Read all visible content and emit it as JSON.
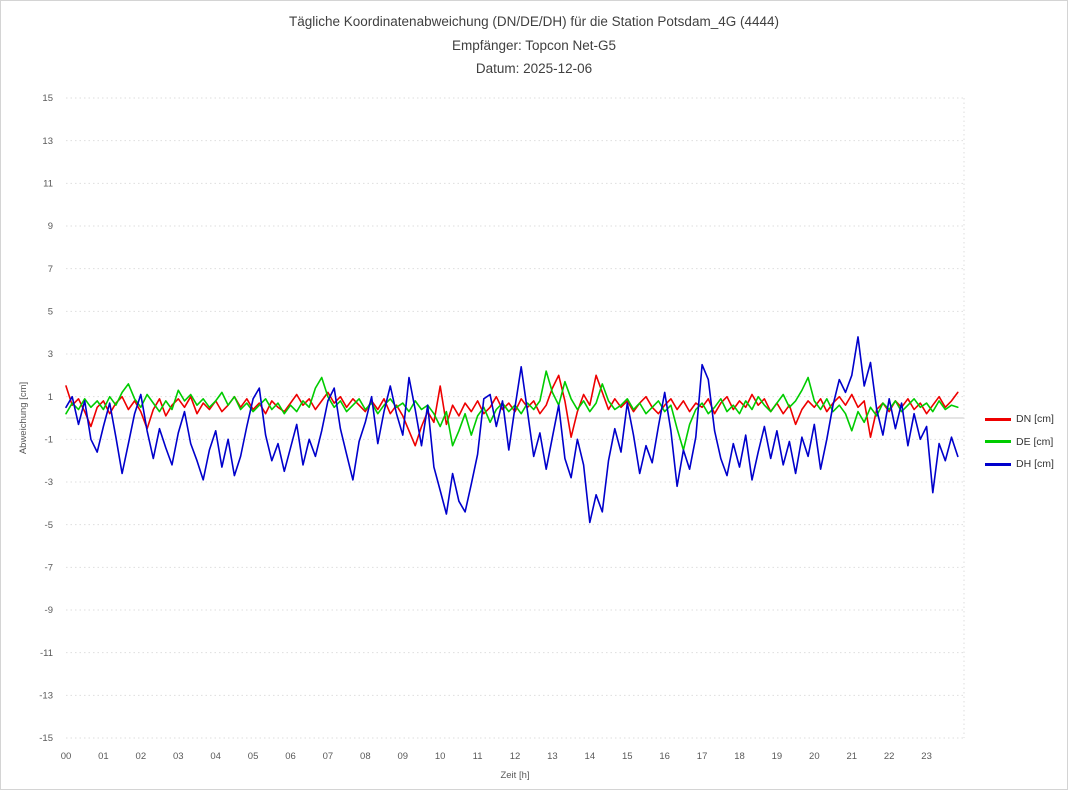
{
  "header": {
    "title": "Tägliche Koordinatenabweichung (DN/DE/DH) für die Station Potsdam_4G (4444)",
    "subtitle_receiver": "Empfänger: Topcon Net-G5",
    "subtitle_date": "Datum: 2025-12-06"
  },
  "chart_data": {
    "type": "line",
    "title": "Tägliche Koordinatenabweichung (DN/DE/DH) für die Station Potsdam_4G (4444)",
    "subtitle": [
      "Empfänger: Topcon Net-G5",
      "Datum: 2025-12-06"
    ],
    "xlabel": "Zeit [h]",
    "ylabel": "Abweichung [cm]",
    "xlim": [
      0,
      24
    ],
    "ylim": [
      -15,
      15
    ],
    "x_tick_labels": [
      "00",
      "01",
      "02",
      "03",
      "04",
      "05",
      "06",
      "07",
      "08",
      "09",
      "10",
      "11",
      "12",
      "13",
      "14",
      "15",
      "16",
      "17",
      "18",
      "19",
      "20",
      "21",
      "22",
      "23"
    ],
    "y_ticks": [
      15,
      13,
      11,
      9,
      7,
      5,
      3,
      1,
      -1,
      -3,
      -5,
      -7,
      -9,
      -11,
      -13,
      -15
    ],
    "x_start_hour": 0,
    "x_interval_minutes": 10,
    "grid": "horizontal-dotted",
    "zero_line": true,
    "legend_position": "right",
    "colors": {
      "grid": "#dedede",
      "zero_line": "#c8c8c8",
      "tick_text": "#595959",
      "border": "#d4d4d4"
    },
    "series": [
      {
        "name": "DN",
        "label": "DN [cm]",
        "color": "#ee0000",
        "values": [
          1.5,
          0.6,
          0.9,
          0.3,
          -0.4,
          0.5,
          0.8,
          0.2,
          0.7,
          1.0,
          0.4,
          0.8,
          0.3,
          -0.5,
          0.4,
          0.9,
          0.1,
          0.6,
          0.9,
          0.5,
          1.0,
          0.2,
          0.7,
          0.4,
          0.8,
          0.3,
          0.6,
          1.0,
          0.5,
          0.9,
          0.4,
          0.7,
          0.2,
          0.8,
          0.5,
          0.3,
          0.7,
          1.1,
          0.6,
          0.9,
          0.4,
          0.8,
          1.2,
          0.7,
          1.0,
          0.5,
          0.9,
          0.6,
          0.3,
          0.8,
          0.4,
          0.9,
          0.2,
          0.6,
          0.1,
          -0.6,
          -1.3,
          -0.4,
          0.3,
          -0.2,
          1.5,
          -0.3,
          0.6,
          0.1,
          0.7,
          0.3,
          0.8,
          0.2,
          0.5,
          1.0,
          0.4,
          0.7,
          0.3,
          0.9,
          0.5,
          0.8,
          0.2,
          0.6,
          1.4,
          2.0,
          0.8,
          -0.9,
          0.3,
          1.1,
          0.6,
          2.0,
          1.2,
          0.4,
          0.9,
          0.5,
          0.8,
          0.3,
          0.7,
          1.0,
          0.5,
          0.2,
          0.6,
          0.9,
          0.4,
          0.8,
          0.3,
          0.7,
          0.5,
          0.9,
          0.2,
          0.7,
          1.0,
          0.4,
          0.8,
          0.5,
          1.1,
          0.6,
          0.9,
          0.3,
          0.7,
          0.2,
          0.6,
          -0.3,
          0.4,
          0.8,
          0.5,
          0.9,
          0.3,
          0.7,
          1.0,
          0.6,
          1.1,
          0.5,
          0.8,
          -0.9,
          0.4,
          0.7,
          0.3,
          0.8,
          0.5,
          0.9,
          0.4,
          0.7,
          0.2,
          0.6,
          1.0,
          0.5,
          0.8,
          1.2
        ]
      },
      {
        "name": "DE",
        "label": "DE [cm]",
        "color": "#00cc00",
        "values": [
          0.2,
          0.7,
          0.4,
          0.9,
          0.5,
          0.8,
          0.4,
          1.0,
          0.6,
          1.2,
          1.6,
          0.9,
          0.5,
          1.1,
          0.7,
          0.3,
          0.8,
          0.4,
          1.3,
          0.8,
          1.1,
          0.6,
          0.9,
          0.5,
          0.8,
          1.2,
          0.6,
          1.0,
          0.4,
          0.7,
          0.3,
          0.6,
          0.9,
          0.4,
          0.7,
          0.2,
          0.6,
          0.3,
          0.8,
          0.5,
          1.4,
          1.9,
          1.0,
          0.5,
          0.8,
          0.3,
          0.6,
          0.9,
          0.4,
          0.7,
          0.2,
          0.6,
          0.9,
          0.5,
          0.7,
          0.3,
          0.8,
          0.4,
          0.6,
          0.2,
          -0.4,
          0.3,
          -1.3,
          -0.6,
          0.2,
          -0.8,
          0.1,
          0.5,
          -0.2,
          0.4,
          0.7,
          0.3,
          0.6,
          0.2,
          0.7,
          0.4,
          0.8,
          2.2,
          1.2,
          0.6,
          1.7,
          0.9,
          0.4,
          0.8,
          0.3,
          0.7,
          1.6,
          0.8,
          0.4,
          0.6,
          0.9,
          0.4,
          0.7,
          0.2,
          0.5,
          0.8,
          0.3,
          0.6,
          -0.5,
          -1.5,
          -0.3,
          0.4,
          0.7,
          0.2,
          0.5,
          0.9,
          0.3,
          0.6,
          0.2,
          0.8,
          0.4,
          1.0,
          0.6,
          0.3,
          0.7,
          1.1,
          0.5,
          0.8,
          1.3,
          1.9,
          0.8,
          0.4,
          0.9,
          0.3,
          0.6,
          0.2,
          -0.6,
          0.3,
          -0.2,
          0.5,
          0.1,
          0.7,
          0.4,
          0.8,
          0.3,
          0.6,
          0.9,
          0.5,
          0.7,
          0.3,
          0.8,
          0.4,
          0.6,
          0.5
        ]
      },
      {
        "name": "DH",
        "label": "DH [cm]",
        "color": "#0000cc",
        "values": [
          0.5,
          1.0,
          -0.3,
          0.8,
          -1.0,
          -1.6,
          -0.4,
          0.7,
          -0.9,
          -2.6,
          -1.2,
          0.2,
          1.1,
          -0.6,
          -1.9,
          -0.5,
          -1.4,
          -2.2,
          -0.7,
          0.3,
          -1.2,
          -2.0,
          -2.9,
          -1.5,
          -0.6,
          -2.3,
          -1.0,
          -2.7,
          -1.8,
          -0.4,
          0.9,
          1.4,
          -0.8,
          -2.0,
          -1.2,
          -2.5,
          -1.4,
          -0.3,
          -2.2,
          -1.0,
          -1.8,
          -0.6,
          0.8,
          1.4,
          -0.5,
          -1.7,
          -2.9,
          -1.1,
          -0.2,
          1.0,
          -1.2,
          0.3,
          1.5,
          0.2,
          -0.8,
          1.9,
          0.4,
          -1.3,
          0.6,
          -2.3,
          -3.4,
          -4.5,
          -2.6,
          -3.9,
          -4.4,
          -3.1,
          -1.7,
          0.9,
          1.1,
          -0.4,
          0.8,
          -1.5,
          0.5,
          2.4,
          0.3,
          -1.8,
          -0.7,
          -2.4,
          -0.9,
          0.6,
          -1.9,
          -2.8,
          -1.0,
          -2.2,
          -4.9,
          -3.6,
          -4.4,
          -2.0,
          -0.5,
          -1.6,
          0.7,
          -0.8,
          -2.6,
          -1.3,
          -2.1,
          -0.4,
          1.2,
          -0.6,
          -3.2,
          -1.5,
          -2.4,
          -0.9,
          2.5,
          1.8,
          -0.6,
          -1.9,
          -2.7,
          -1.2,
          -2.3,
          -0.8,
          -2.9,
          -1.6,
          -0.4,
          -1.9,
          -0.6,
          -2.2,
          -1.1,
          -2.6,
          -0.9,
          -1.8,
          -0.3,
          -2.4,
          -1.0,
          0.6,
          1.8,
          1.2,
          2.0,
          3.8,
          1.5,
          2.6,
          0.4,
          -0.8,
          0.9,
          -0.5,
          0.7,
          -1.3,
          0.2,
          -1.0,
          -0.4,
          -3.5,
          -1.2,
          -2.0,
          -0.9,
          -1.8
        ]
      }
    ]
  }
}
